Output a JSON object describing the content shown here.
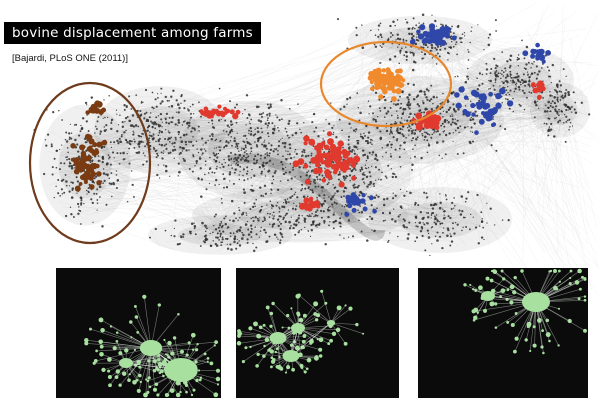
{
  "title": "bovine displacement among farms",
  "citation": "[Bajardi, PLoS ONE (2011)]",
  "colors": {
    "background_nodes": "#2b2b2b",
    "edges": "#9a9a9a",
    "cluster_red": "#e03a2f",
    "cluster_blue": "#2f47a8",
    "cluster_orange": "#f08a2c",
    "cluster_brown": "#7a3b12",
    "ellipse_brown": "#6e3b1c",
    "ellipse_orange": "#e8882e",
    "panel_background": "#0b0b0b",
    "panel_network": "#a8e0a0"
  },
  "highlighted_groups": [
    {
      "name": "brown-cluster",
      "color": "#7a3b12",
      "circled": true
    },
    {
      "name": "orange-cluster",
      "color": "#f08a2c",
      "circled": true
    },
    {
      "name": "red-nodes",
      "color": "#e03a2f",
      "circled": false
    },
    {
      "name": "blue-nodes",
      "color": "#2f47a8",
      "circled": false
    }
  ],
  "inset_panels": [
    {
      "name": "inset-network-1",
      "hubs": 3
    },
    {
      "name": "inset-network-2",
      "hubs": 4
    },
    {
      "name": "inset-network-3",
      "hubs": 2
    }
  ]
}
